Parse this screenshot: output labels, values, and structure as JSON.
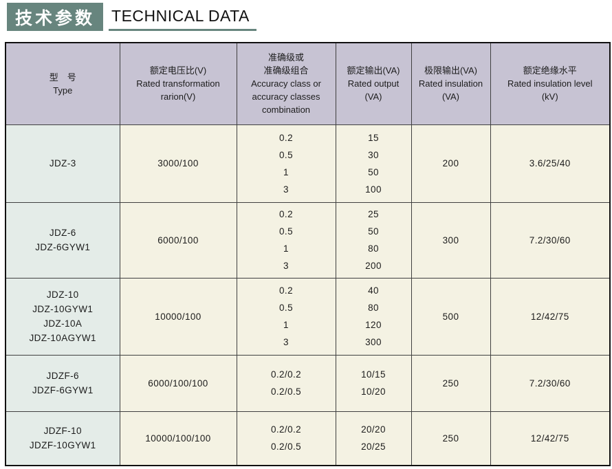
{
  "page_title": {
    "cn": "技术参数",
    "en": "TECHNICAL DATA"
  },
  "colors": {
    "title_green": "#67857e",
    "header_bg": "#c7c3d3",
    "type_column_bg": "#e4ece8",
    "cell_bg": "#f4f2e3",
    "border_outer": "#111111",
    "border_inner": "#3f3f3f"
  },
  "table": {
    "headers": [
      {
        "lines": [
          "型　号",
          "Type"
        ]
      },
      {
        "lines": [
          "额定电压比(V)",
          "Rated transformation",
          "rarion(V)"
        ]
      },
      {
        "lines": [
          "准确级或",
          "准确级组合",
          "Accuracy class or",
          "accuracy classes",
          "combination"
        ]
      },
      {
        "lines": [
          "额定输出(VA)",
          "Rated output",
          "(VA)"
        ]
      },
      {
        "lines": [
          "极限输出(VA)",
          "Rated insulation",
          "(VA)"
        ]
      },
      {
        "lines": [
          "额定绝缘水平",
          "Rated insulation level",
          "(kV)"
        ]
      }
    ],
    "fields": [
      "type",
      "ratio",
      "accuracy",
      "output",
      "limit",
      "insulation"
    ],
    "rows": [
      {
        "type": [
          "JDZ-3"
        ],
        "ratio": "3000/100",
        "accuracy": [
          "0.2",
          "0.5",
          "1",
          "3"
        ],
        "output": [
          "15",
          "30",
          "50",
          "100"
        ],
        "limit": "200",
        "insulation": "3.6/25/40"
      },
      {
        "type": [
          "JDZ-6",
          "JDZ-6GYW1"
        ],
        "ratio": "6000/100",
        "accuracy": [
          "0.2",
          "0.5",
          "1",
          "3"
        ],
        "output": [
          "25",
          "50",
          "80",
          "200"
        ],
        "limit": "300",
        "insulation": "7.2/30/60"
      },
      {
        "type": [
          "JDZ-10",
          "JDZ-10GYW1",
          "JDZ-10A",
          "JDZ-10AGYW1"
        ],
        "ratio": "10000/100",
        "accuracy": [
          "0.2",
          "0.5",
          "1",
          "3"
        ],
        "output": [
          "40",
          "80",
          "120",
          "300"
        ],
        "limit": "500",
        "insulation": "12/42/75"
      },
      {
        "type": [
          "JDZF-6",
          "JDZF-6GYW1"
        ],
        "ratio": "6000/100/100",
        "accuracy": [
          "0.2/0.2",
          "0.2/0.5"
        ],
        "output": [
          "10/15",
          "10/20"
        ],
        "limit": "250",
        "insulation": "7.2/30/60"
      },
      {
        "type": [
          "JDZF-10",
          "JDZF-10GYW1"
        ],
        "ratio": "10000/100/100",
        "accuracy": [
          "0.2/0.2",
          "0.2/0.5"
        ],
        "output": [
          "20/20",
          "20/25"
        ],
        "limit": "250",
        "insulation": "12/42/75"
      }
    ]
  }
}
